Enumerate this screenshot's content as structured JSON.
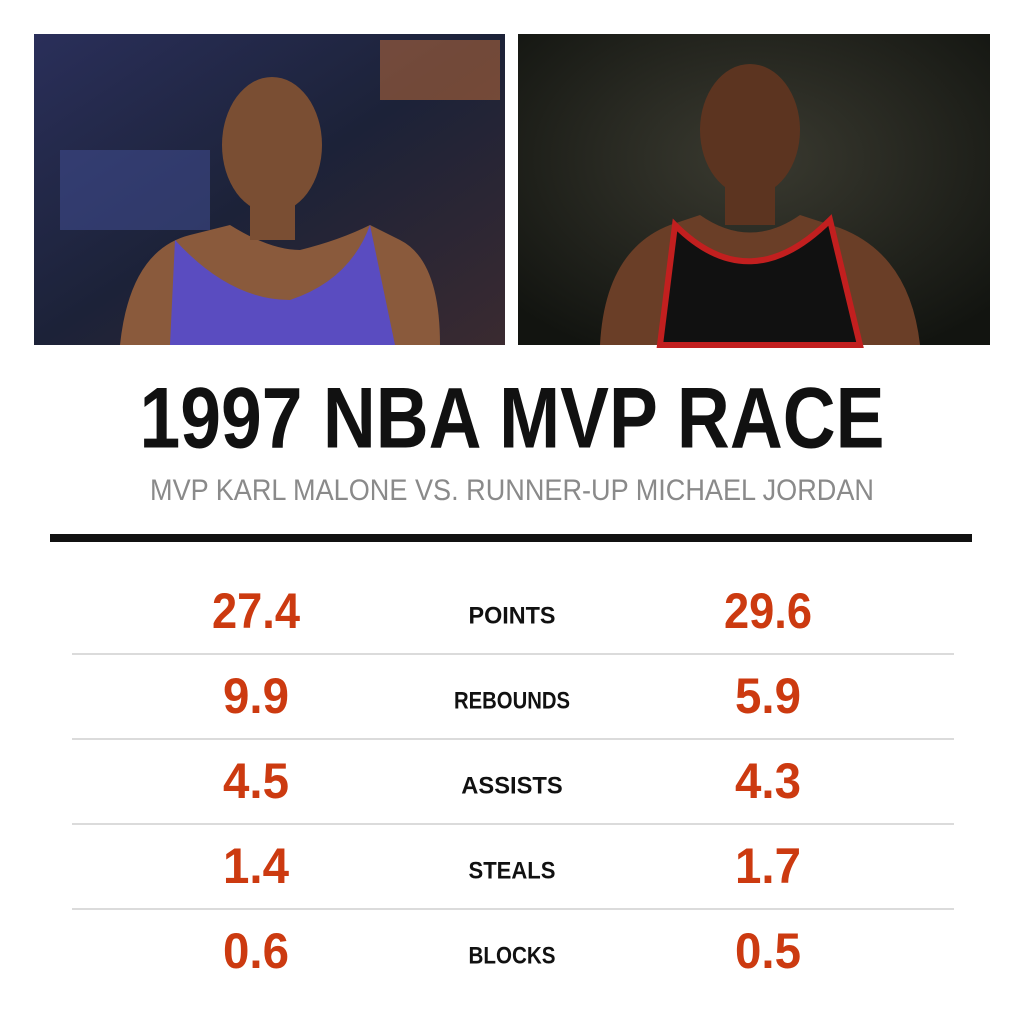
{
  "header": {
    "title": "1997 NBA MVP RACE",
    "subtitle": "MVP KARL MALONE VS. RUNNER-UP MICHAEL JORDAN"
  },
  "table": {
    "rows": [
      {
        "label": "POINTS",
        "left": 27.4,
        "right": 29.6
      },
      {
        "label": "REBOUNDS",
        "left": 9.9,
        "right": 5.9
      },
      {
        "label": "ASSISTS",
        "left": 4.5,
        "right": 4.3
      },
      {
        "label": "STEALS",
        "left": 1.4,
        "right": 1.7
      },
      {
        "label": "BLOCKS",
        "left": 0.6,
        "right": 0.5
      }
    ]
  }
}
